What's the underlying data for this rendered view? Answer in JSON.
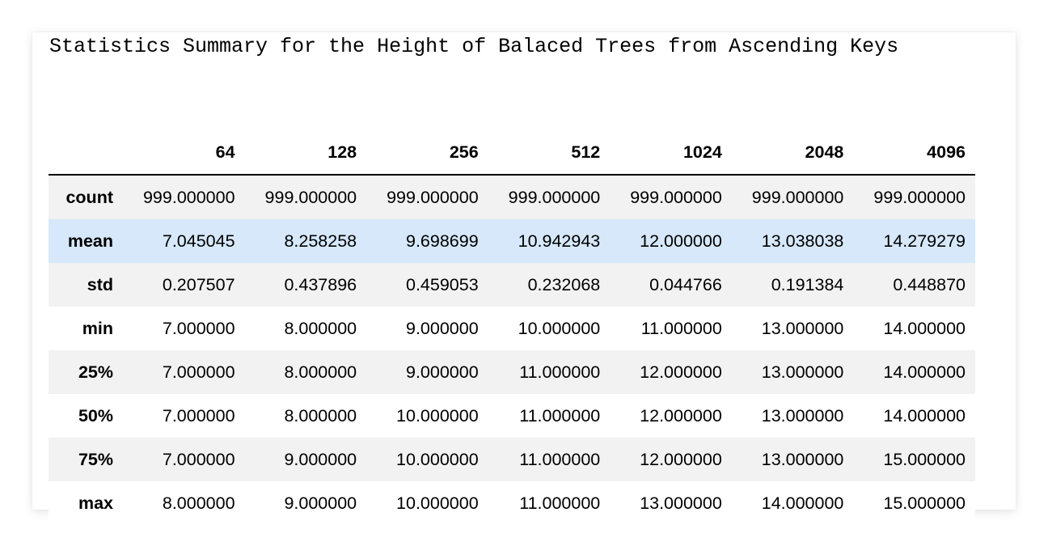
{
  "title": "Statistics Summary for the Height of Balaced Trees from Ascending Keys",
  "table": {
    "columns": [
      "",
      "64",
      "128",
      "256",
      "512",
      "1024",
      "2048",
      "4096"
    ],
    "rows": [
      {
        "label": "count",
        "values": [
          "999.000000",
          "999.000000",
          "999.000000",
          "999.000000",
          "999.000000",
          "999.000000",
          "999.000000"
        ]
      },
      {
        "label": "mean",
        "values": [
          "7.045045",
          "8.258258",
          "9.698699",
          "10.942943",
          "12.000000",
          "13.038038",
          "14.279279"
        ]
      },
      {
        "label": "std",
        "values": [
          "0.207507",
          "0.437896",
          "0.459053",
          "0.232068",
          "0.044766",
          "0.191384",
          "0.448870"
        ]
      },
      {
        "label": "min",
        "values": [
          "7.000000",
          "8.000000",
          "9.000000",
          "10.000000",
          "11.000000",
          "13.000000",
          "14.000000"
        ]
      },
      {
        "label": "25%",
        "values": [
          "7.000000",
          "8.000000",
          "9.000000",
          "11.000000",
          "12.000000",
          "13.000000",
          "14.000000"
        ]
      },
      {
        "label": "50%",
        "values": [
          "7.000000",
          "8.000000",
          "10.000000",
          "11.000000",
          "12.000000",
          "13.000000",
          "14.000000"
        ]
      },
      {
        "label": "75%",
        "values": [
          "7.000000",
          "9.000000",
          "10.000000",
          "11.000000",
          "12.000000",
          "13.000000",
          "15.000000"
        ]
      },
      {
        "label": "max",
        "values": [
          "8.000000",
          "9.000000",
          "10.000000",
          "11.000000",
          "13.000000",
          "14.000000",
          "15.000000"
        ]
      }
    ],
    "highlighted_row": "mean"
  },
  "colors": {
    "row_stripe": "#f2f2f2",
    "row_highlight": "#d6e8fa",
    "header_rule": "#000000"
  }
}
